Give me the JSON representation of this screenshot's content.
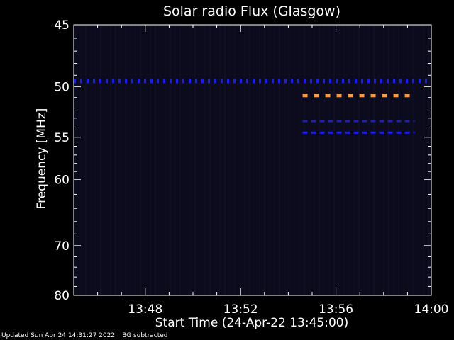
{
  "chart_data": {
    "type": "heatmap",
    "title": "Solar radio Flux (Glasgow)",
    "xlabel": "Start Time (24-Apr-22 13:45:00)",
    "ylabel": "Frequency [MHz]",
    "x_ticks": [
      "13:48",
      "13:52",
      "13:56",
      "14:00"
    ],
    "x_tick_minutes": [
      3,
      7,
      11,
      15
    ],
    "xlim_minutes": [
      0,
      15
    ],
    "y_ticks": [
      45,
      50,
      55,
      60,
      70,
      80
    ],
    "ylim": [
      45,
      80
    ],
    "y_scale": "log-like (reciprocal)",
    "grid": false,
    "colors": {
      "background": "#000000",
      "plot_background": "#0b0b1c",
      "axes": "#ffffff",
      "low_flux": "#0000cc",
      "high_flux": "#ff9a3c"
    },
    "features": [
      {
        "name": "",
        "freq_mhz": 49.5,
        "start_min": 0,
        "end_min": 15,
        "color": "#1a1aff",
        "style": "dashed"
      },
      {
        "name": "",
        "freq_mhz": 50.8,
        "start_min": 9.6,
        "end_min": 14.3,
        "color": "#ff9a3c",
        "style": "dashed"
      },
      {
        "name": "",
        "freq_mhz": 53.3,
        "start_min": 9.6,
        "end_min": 14.3,
        "color": "#2020aa",
        "style": "dashed"
      },
      {
        "name": "",
        "freq_mhz": 54.5,
        "start_min": 9.6,
        "end_min": 14.3,
        "color": "#1a1aff",
        "style": "dashed"
      }
    ]
  },
  "footer": {
    "updated": "Updated Sun Apr 24 14:31:27 2022",
    "note": "BG subtracted"
  }
}
